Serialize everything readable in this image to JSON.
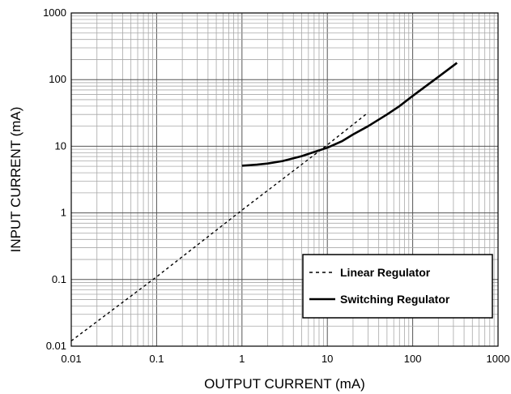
{
  "chart_data": {
    "type": "line",
    "x_scale": "log",
    "y_scale": "log",
    "xlim": [
      0.01,
      1000
    ],
    "ylim": [
      0.01,
      1000
    ],
    "grid": true,
    "xlabel": "OUTPUT CURRENT (mA)",
    "ylabel": "INPUT CURRENT (mA)",
    "x_ticks": [
      "0.01",
      "0.1",
      "1",
      "10",
      "100",
      "1000"
    ],
    "y_ticks": [
      "0.01",
      "0.1",
      "1",
      "10",
      "100",
      "1000"
    ],
    "legend_position": "bottom-right",
    "series": [
      {
        "name": "Linear Regulator",
        "style": "dashed",
        "color": "#000000",
        "points": [
          [
            0.01,
            0.012
          ],
          [
            0.1,
            0.11
          ],
          [
            1,
            1.1
          ],
          [
            10,
            10.5
          ],
          [
            30,
            32
          ]
        ]
      },
      {
        "name": "Switching Regulator",
        "style": "solid",
        "color": "#000000",
        "points": [
          [
            1,
            5.1
          ],
          [
            1.5,
            5.3
          ],
          [
            2,
            5.5
          ],
          [
            3,
            6.0
          ],
          [
            5,
            7.1
          ],
          [
            7,
            8.2
          ],
          [
            10,
            9.5
          ],
          [
            15,
            12
          ],
          [
            20,
            15
          ],
          [
            30,
            20
          ],
          [
            50,
            30
          ],
          [
            70,
            40
          ],
          [
            100,
            57
          ],
          [
            200,
            110
          ],
          [
            330,
            178
          ]
        ]
      }
    ]
  }
}
